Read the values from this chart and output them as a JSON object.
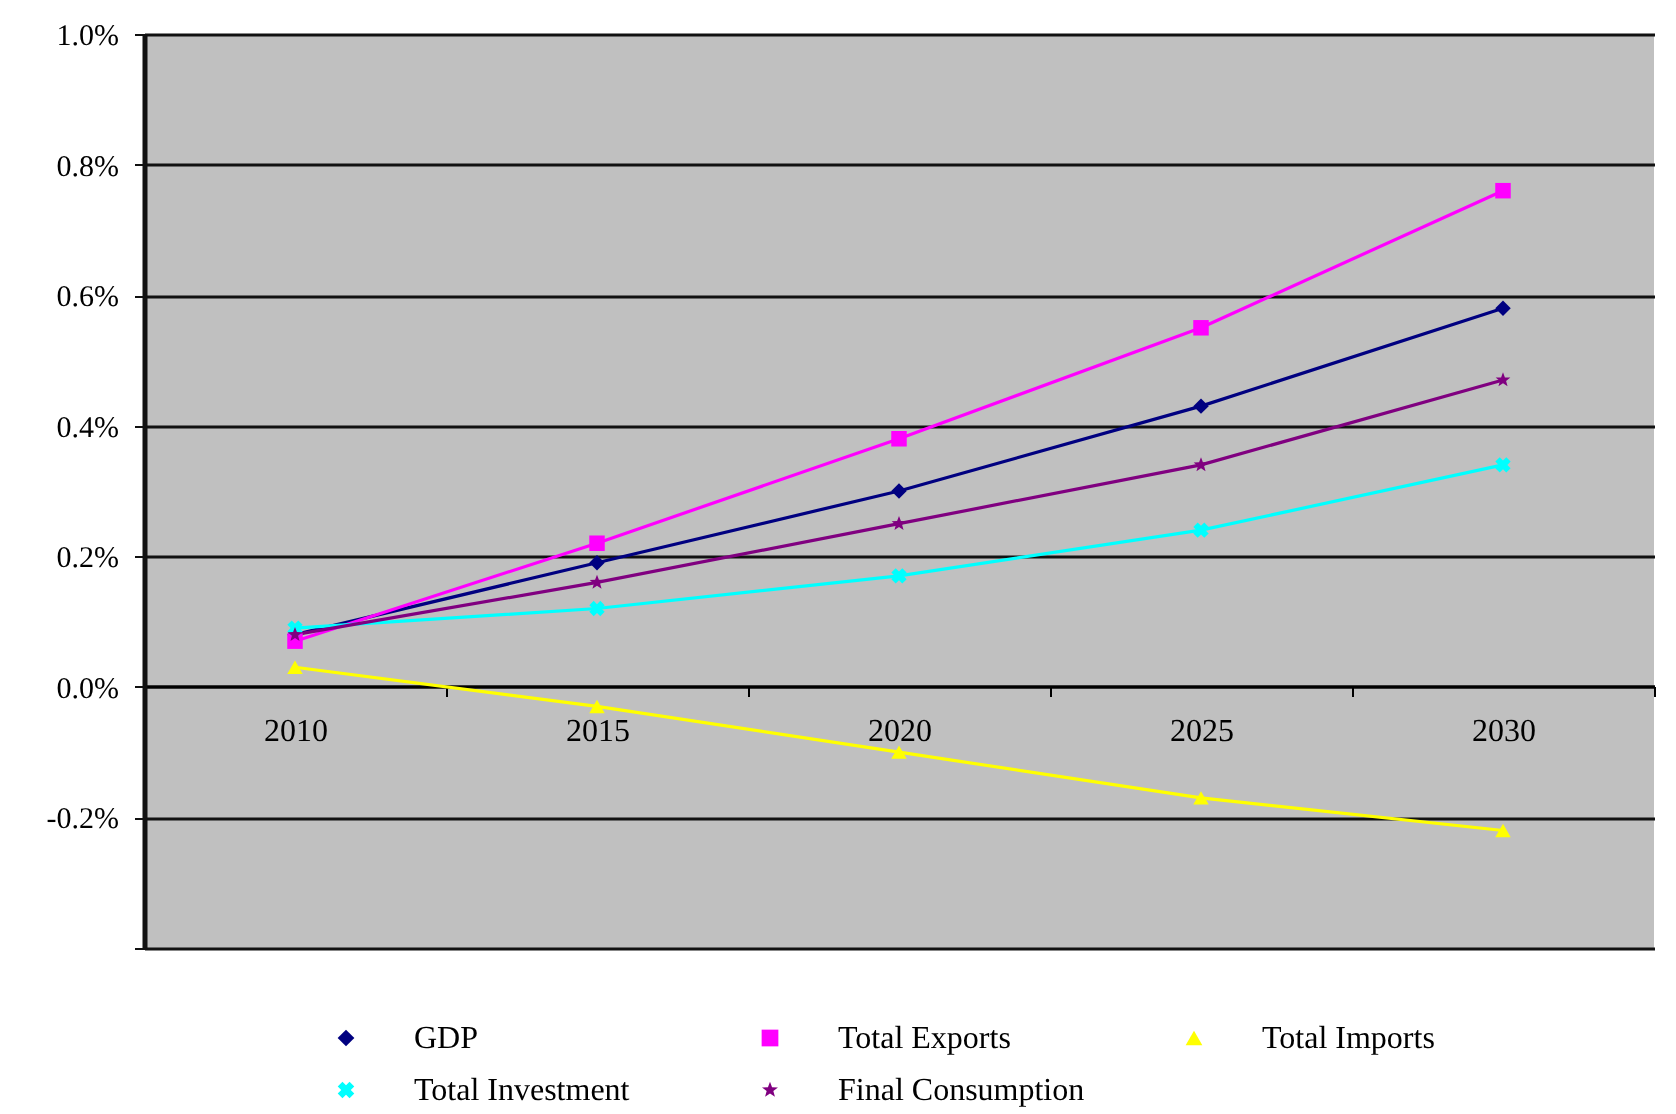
{
  "chart_data": {
    "type": "line",
    "categories": [
      "2010",
      "2015",
      "2020",
      "2025",
      "2030"
    ],
    "series": [
      {
        "name": "GDP",
        "color": "#000080",
        "marker": "diamond",
        "values": [
          0.08,
          0.19,
          0.3,
          0.43,
          0.58
        ]
      },
      {
        "name": "Total Exports",
        "color": "#ff00ff",
        "marker": "square",
        "values": [
          0.07,
          0.22,
          0.38,
          0.55,
          0.76
        ]
      },
      {
        "name": "Total Imports",
        "color": "#ffff00",
        "marker": "triangle",
        "values": [
          0.03,
          -0.03,
          -0.1,
          -0.17,
          -0.22
        ]
      },
      {
        "name": "Total Investment",
        "color": "#00ffff",
        "marker": "cross",
        "values": [
          0.09,
          0.12,
          0.17,
          0.24,
          0.34
        ]
      },
      {
        "name": "Final Consumption",
        "color": "#800080",
        "marker": "star",
        "values": [
          0.08,
          0.16,
          0.25,
          0.34,
          0.47
        ]
      }
    ],
    "ylim": [
      -0.4,
      1.0
    ],
    "yticks": [
      {
        "value": -0.4,
        "label": null
      },
      {
        "value": -0.2,
        "label": "-0.2%"
      },
      {
        "value": 0,
        "label": "0.0%"
      },
      {
        "value": 0.2,
        "label": "0.2%"
      },
      {
        "value": 0.4,
        "label": "0.4%"
      },
      {
        "value": 0.6,
        "label": "0.6%"
      },
      {
        "value": 0.8,
        "label": "0.8%"
      },
      {
        "value": 1.0,
        "label": "1.0%"
      }
    ],
    "grid": "y",
    "legend": "bottom",
    "line_style": "solid"
  }
}
